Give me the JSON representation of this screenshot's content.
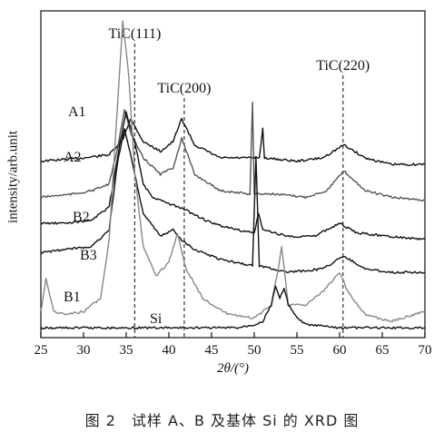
{
  "caption": "图 2　试样 A、B 及基体 Si 的 XRD 图",
  "chart_data": {
    "type": "line",
    "xlabel": "2θ/(°)",
    "ylabel": "intensity/arb.unit",
    "xlim": [
      25,
      70
    ],
    "xticks": [
      25,
      30,
      35,
      40,
      45,
      50,
      55,
      60,
      65,
      70
    ],
    "grid": false,
    "peak_markers": [
      {
        "label": "TiC(111)",
        "x": 36
      },
      {
        "label": "TiC(200)",
        "x": 41.8
      },
      {
        "label": "TiC(220)",
        "x": 60.4
      }
    ],
    "series": [
      {
        "name": "A1",
        "color": "#111111",
        "points": [
          [
            25,
            0.54
          ],
          [
            30,
            0.55
          ],
          [
            33,
            0.56
          ],
          [
            34.5,
            0.6
          ],
          [
            35.5,
            0.67
          ],
          [
            37,
            0.6
          ],
          [
            39,
            0.57
          ],
          [
            40.5,
            0.6
          ],
          [
            41.5,
            0.67
          ],
          [
            43,
            0.59
          ],
          [
            46,
            0.55
          ],
          [
            50,
            0.55
          ],
          [
            50.6,
            0.55
          ],
          [
            51,
            0.64
          ],
          [
            51.2,
            0.55
          ],
          [
            55,
            0.54
          ],
          [
            58,
            0.55
          ],
          [
            60.5,
            0.59
          ],
          [
            63,
            0.55
          ],
          [
            66,
            0.53
          ],
          [
            70,
            0.53
          ]
        ]
      },
      {
        "name": "A2",
        "color": "#555555",
        "points": [
          [
            25,
            0.43
          ],
          [
            29,
            0.44
          ],
          [
            31,
            0.45
          ],
          [
            33,
            0.47
          ],
          [
            34,
            0.58
          ],
          [
            34.8,
            0.7
          ],
          [
            35.6,
            0.62
          ],
          [
            37,
            0.55
          ],
          [
            39,
            0.5
          ],
          [
            40.5,
            0.52
          ],
          [
            41.5,
            0.61
          ],
          [
            43,
            0.5
          ],
          [
            46,
            0.45
          ],
          [
            49.5,
            0.44
          ],
          [
            49.8,
            0.72
          ],
          [
            50,
            0.44
          ],
          [
            52,
            0.44
          ],
          [
            56,
            0.43
          ],
          [
            58.5,
            0.45
          ],
          [
            60.5,
            0.51
          ],
          [
            63,
            0.45
          ],
          [
            66,
            0.43
          ],
          [
            70,
            0.42
          ]
        ]
      },
      {
        "name": "B2",
        "color": "#111111",
        "points": [
          [
            25,
            0.35
          ],
          [
            28,
            0.35
          ],
          [
            31,
            0.36
          ],
          [
            33,
            0.4
          ],
          [
            34.3,
            0.6
          ],
          [
            35,
            0.69
          ],
          [
            36,
            0.6
          ],
          [
            37,
            0.47
          ],
          [
            38,
            0.43
          ],
          [
            40,
            0.41
          ],
          [
            42,
            0.39
          ],
          [
            45,
            0.35
          ],
          [
            48,
            0.33
          ],
          [
            50,
            0.32
          ],
          [
            50.5,
            0.38
          ],
          [
            51,
            0.33
          ],
          [
            54,
            0.31
          ],
          [
            57,
            0.31
          ],
          [
            60,
            0.35
          ],
          [
            62,
            0.32
          ],
          [
            66,
            0.31
          ],
          [
            70,
            0.3
          ]
        ]
      },
      {
        "name": "B3",
        "color": "#111111",
        "points": [
          [
            25,
            0.26
          ],
          [
            28,
            0.27
          ],
          [
            31,
            0.28
          ],
          [
            33,
            0.33
          ],
          [
            34,
            0.54
          ],
          [
            34.8,
            0.64
          ],
          [
            35.6,
            0.55
          ],
          [
            37,
            0.38
          ],
          [
            39,
            0.31
          ],
          [
            40.5,
            0.33
          ],
          [
            41.5,
            0.3
          ],
          [
            43,
            0.27
          ],
          [
            46,
            0.24
          ],
          [
            49.8,
            0.22
          ],
          [
            50.2,
            0.55
          ],
          [
            50.6,
            0.22
          ],
          [
            54,
            0.2
          ],
          [
            58,
            0.21
          ],
          [
            60.5,
            0.25
          ],
          [
            63,
            0.21
          ],
          [
            66,
            0.2
          ],
          [
            70,
            0.2
          ]
        ]
      },
      {
        "name": "B1",
        "color": "#888888",
        "points": [
          [
            25,
            0.08
          ],
          [
            25.6,
            0.18
          ],
          [
            26.5,
            0.08
          ],
          [
            28,
            0.07
          ],
          [
            30,
            0.08
          ],
          [
            32,
            0.12
          ],
          [
            33,
            0.3
          ],
          [
            34,
            0.72
          ],
          [
            34.6,
            0.97
          ],
          [
            35.3,
            0.8
          ],
          [
            36,
            0.5
          ],
          [
            37,
            0.28
          ],
          [
            38.5,
            0.19
          ],
          [
            40,
            0.23
          ],
          [
            41,
            0.32
          ],
          [
            42,
            0.21
          ],
          [
            44,
            0.12
          ],
          [
            47,
            0.07
          ],
          [
            50,
            0.06
          ],
          [
            52,
            0.1
          ],
          [
            52.8,
            0.21
          ],
          [
            53.2,
            0.28
          ],
          [
            54,
            0.1
          ],
          [
            56,
            0.1
          ],
          [
            58,
            0.14
          ],
          [
            60,
            0.2
          ],
          [
            61,
            0.14
          ],
          [
            63,
            0.07
          ],
          [
            66,
            0.05
          ],
          [
            70,
            0.08
          ]
        ]
      },
      {
        "name": "Si",
        "color": "#111111",
        "points": [
          [
            25,
            0.03
          ],
          [
            30,
            0.03
          ],
          [
            35,
            0.03
          ],
          [
            40,
            0.03
          ],
          [
            45,
            0.03
          ],
          [
            48,
            0.03
          ],
          [
            50,
            0.04
          ],
          [
            51,
            0.05
          ],
          [
            52,
            0.1
          ],
          [
            52.5,
            0.16
          ],
          [
            53,
            0.12
          ],
          [
            53.5,
            0.15
          ],
          [
            54,
            0.1
          ],
          [
            55,
            0.06
          ],
          [
            56,
            0.04
          ],
          [
            60,
            0.03
          ],
          [
            65,
            0.03
          ],
          [
            70,
            0.03
          ]
        ]
      }
    ]
  }
}
